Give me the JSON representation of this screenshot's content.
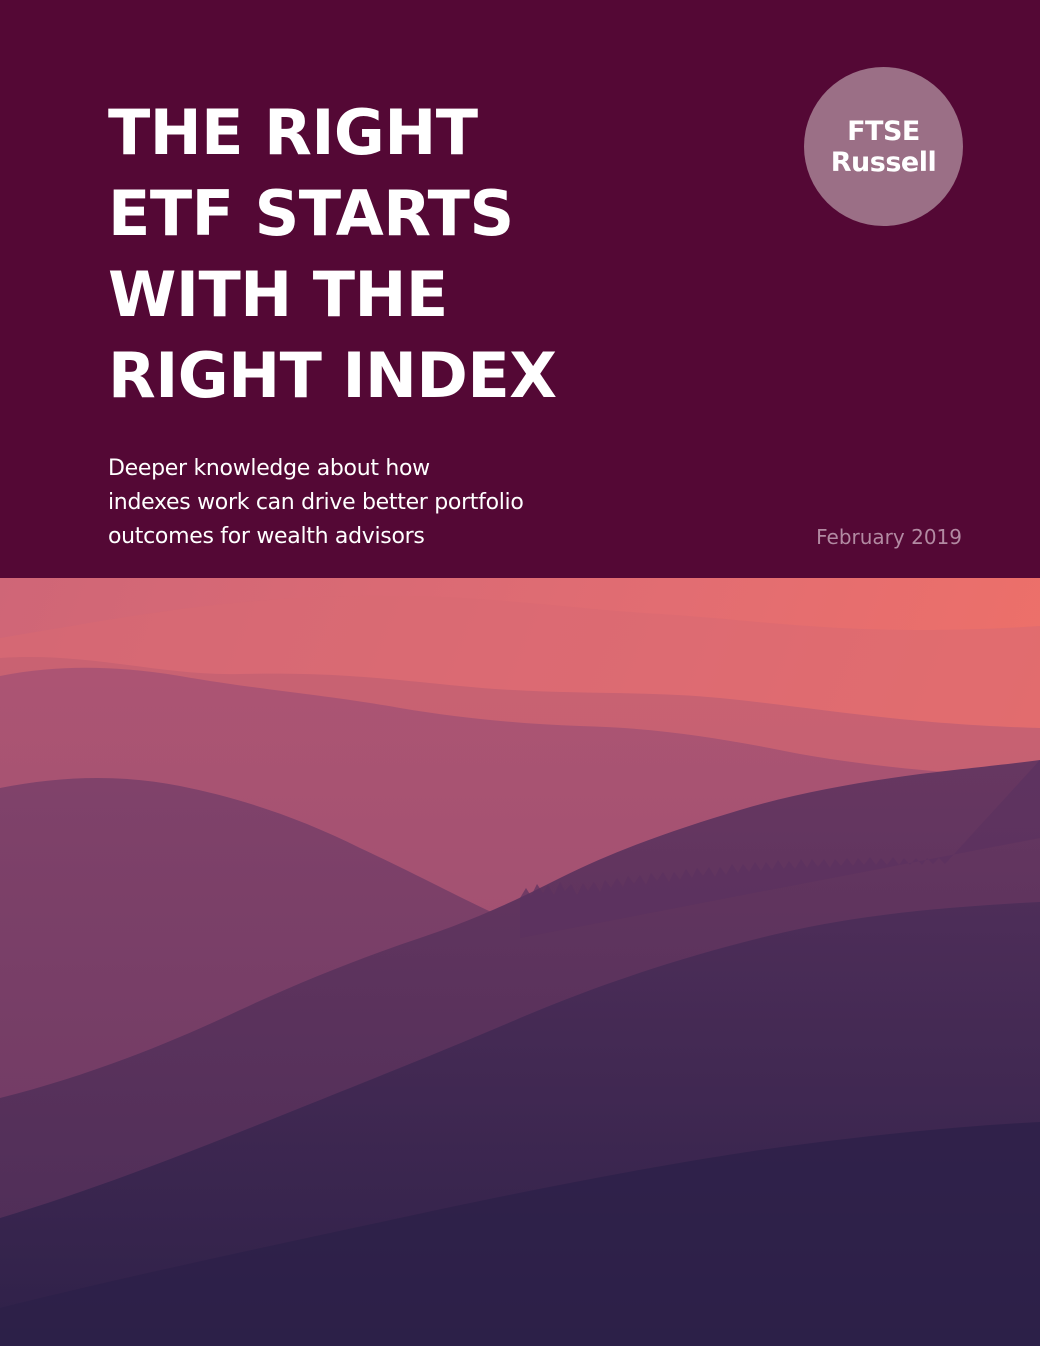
{
  "cover": {
    "title_lines": [
      "THE RIGHT",
      "ETF STARTS",
      "WITH THE",
      "RIGHT INDEX"
    ],
    "subtitle_lines": [
      "Deeper knowledge about how",
      "indexes work can drive better portfolio",
      "outcomes for wealth advisors"
    ],
    "date": "February 2019"
  },
  "logo": {
    "lines": [
      "FTSE",
      "Russell"
    ]
  },
  "colors": {
    "background": "#540835",
    "logo_circle": "#9b6f86",
    "date_text": "#b28aa2",
    "sky_top": "#ee7068",
    "valley_bottom": "#2c2048"
  },
  "image": {
    "subject": "mountain-ridges-at-sunset"
  }
}
